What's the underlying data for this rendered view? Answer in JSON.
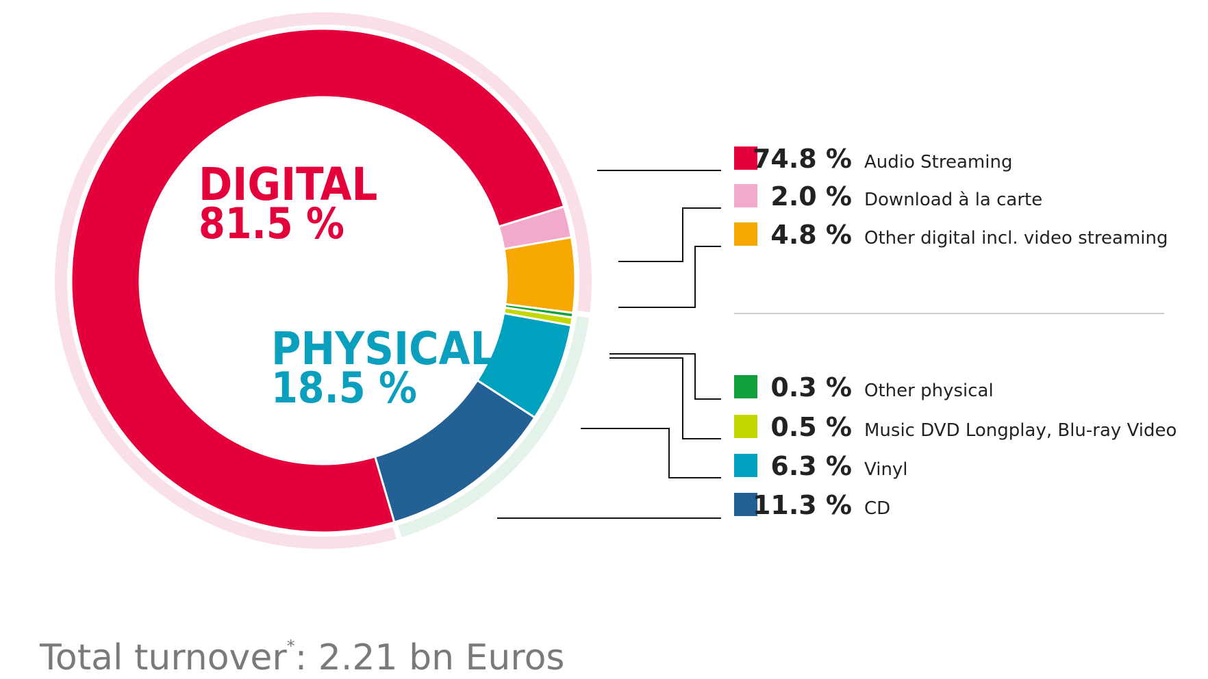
{
  "chart_data": {
    "type": "pie",
    "style": "donut",
    "groups": [
      {
        "name": "DIGITAL",
        "percent_label": "81.5 %",
        "value": 81.5,
        "color": "#e4003a",
        "ring_color": "#f9e0e6"
      },
      {
        "name": "PHYSICAL",
        "percent_label": "18.5 %",
        "value": 18.5,
        "color": "#0a9fbd",
        "ring_color": "#e4f3ea"
      }
    ],
    "slices": [
      {
        "label": "Audio Streaming",
        "percent_label": "74.8 %",
        "value": 74.8,
        "color": "#e4003a",
        "group": "DIGITAL"
      },
      {
        "label": "Download à la carte",
        "percent_label": "2.0 %",
        "value": 2.0,
        "color": "#f3a9cb",
        "group": "DIGITAL"
      },
      {
        "label": "Other digital incl. video streaming",
        "percent_label": "4.8 %",
        "value": 4.8,
        "color": "#f7a800",
        "group": "DIGITAL"
      },
      {
        "label": "Other physical",
        "percent_label": "0.3 %",
        "value": 0.3,
        "color": "#12a03c",
        "group": "PHYSICAL"
      },
      {
        "label": "Music DVD Longplay, Blu-ray Video",
        "percent_label": "0.5 %",
        "value": 0.5,
        "color": "#c4d600",
        "group": "PHYSICAL"
      },
      {
        "label": "Vinyl",
        "percent_label": "6.3 %",
        "value": 6.3,
        "color": "#00a0bf",
        "group": "PHYSICAL"
      },
      {
        "label": "CD",
        "percent_label": "11.3 %",
        "value": 11.3,
        "color": "#236093",
        "group": "PHYSICAL"
      }
    ],
    "legend_placement": "right",
    "footer": {
      "text_before": "Total turnover",
      "superscript": "*",
      "text_after": ": 2.21 bn Euros"
    }
  }
}
